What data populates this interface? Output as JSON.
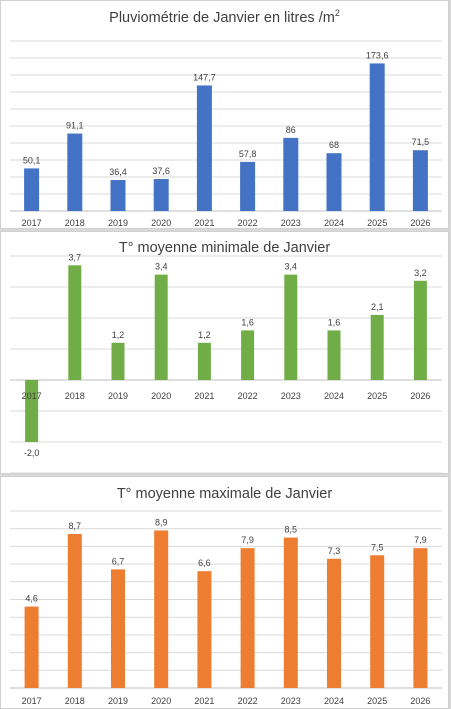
{
  "chart_data": [
    {
      "type": "bar",
      "title": "Pluviométrie de  Janvier  en litres /m",
      "title_sup": "2",
      "categories": [
        "2017",
        "2018",
        "2019",
        "2020",
        "2021",
        "2022",
        "2023",
        "2024",
        "2025",
        "2026"
      ],
      "values": [
        50.1,
        91.1,
        36.4,
        37.6,
        147.7,
        57.8,
        86,
        68,
        173.6,
        71.5
      ],
      "labels": [
        "50,1",
        "91,1",
        "36,4",
        "37,6",
        "147,7",
        "57,8",
        "86",
        "68",
        "173,6",
        "71,5"
      ],
      "ylim": [
        0,
        200
      ],
      "grid": true,
      "color": "#4472c4"
    },
    {
      "type": "bar",
      "title": "T° moyenne minimale de Janvier",
      "categories": [
        "2017",
        "2018",
        "2019",
        "2020",
        "2021",
        "2022",
        "2023",
        "2024",
        "2025",
        "2026"
      ],
      "values": [
        -2.0,
        3.7,
        1.2,
        3.4,
        1.2,
        1.6,
        3.4,
        1.6,
        2.1,
        3.2
      ],
      "labels": [
        "-2,0",
        "3,7",
        "1,2",
        "3,4",
        "1,2",
        "1,6",
        "3,4",
        "1,6",
        "2,1",
        "3,2"
      ],
      "ylim": [
        -3,
        4
      ],
      "grid": true,
      "color": "#70ad47"
    },
    {
      "type": "bar",
      "title": "T° moyenne maximale de Janvier",
      "categories": [
        "2017",
        "2018",
        "2019",
        "2020",
        "2021",
        "2022",
        "2023",
        "2024",
        "2025",
        "2026"
      ],
      "values": [
        4.6,
        8.7,
        6.7,
        8.9,
        6.6,
        7.9,
        8.5,
        7.3,
        7.5,
        7.9
      ],
      "labels": [
        "4,6",
        "8,7",
        "6,7",
        "8,9",
        "6,6",
        "7,9",
        "8,5",
        "7,3",
        "7,5",
        "7,9"
      ],
      "ylim": [
        0,
        10
      ],
      "grid": true,
      "color": "#ed7d31"
    }
  ]
}
